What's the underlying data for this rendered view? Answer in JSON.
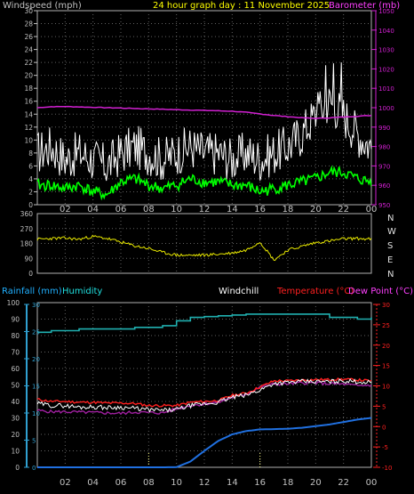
{
  "colors": {
    "wind_gust": "#ffffff",
    "wind_avg": "#00ff00",
    "barometer": "#d020d0",
    "header_yellow": "#ffff00",
    "bar_magenta": "#ff40ff",
    "direction": "#e8e800",
    "rain": "#2070e0",
    "rain_label": "#20b0ff",
    "humidity": "#20b0b0",
    "humidity_label": "#20e0e0",
    "windchill": "#ffffff",
    "temperature": "#ff2020",
    "dewpoint": "#a020a0",
    "temp_label": "#ff2020",
    "dew_label": "#ff40ff",
    "grid": "#606060",
    "frame": "#b0b0b0",
    "tick_text": "#c0c0c0",
    "rain_axis": "#30a0d0",
    "temp_axis": "#ff2020"
  },
  "header": {
    "left": "Windspeed (mph)",
    "center": "24 hour graph day : 11 November 2025",
    "right": "Barometer (mb)"
  },
  "bottom_header": {
    "rainfall": "Rainfall (mm)",
    "humidity": "Humidity",
    "windchill": "Windchill",
    "temperature": "Temperature (°C)",
    "dewpoint": "Dew Point (°C)"
  },
  "compass": [
    "N",
    "W",
    "S",
    "E",
    "N"
  ],
  "x_ticks": [
    "02",
    "04",
    "06",
    "08",
    "10",
    "12",
    "14",
    "16",
    "18",
    "20",
    "22",
    "00"
  ],
  "chart_data": [
    {
      "type": "line",
      "id": "wind",
      "xlim": [
        0,
        24
      ],
      "ylim": [
        0,
        30
      ],
      "y_ticks": [
        0,
        2,
        4,
        6,
        8,
        10,
        12,
        14,
        16,
        18,
        20,
        22,
        24,
        26,
        28,
        30
      ],
      "y2lim": [
        950,
        1050
      ],
      "y2_ticks": [
        950,
        960,
        970,
        980,
        990,
        1000,
        1010,
        1020,
        1030,
        1040,
        1050
      ],
      "x": [
        0,
        1,
        2,
        3,
        4,
        5,
        6,
        7,
        8,
        9,
        10,
        11,
        12,
        13,
        14,
        15,
        16,
        17,
        18,
        19,
        20,
        21,
        22,
        23,
        24
      ],
      "series": [
        {
          "name": "Windspeed (mph)",
          "role": "gust",
          "values": [
            8,
            9,
            7,
            8,
            7,
            6,
            8,
            9,
            8,
            7,
            8,
            9,
            8,
            8,
            7,
            8,
            7,
            8,
            9,
            11,
            14,
            16,
            14,
            11,
            9
          ]
        },
        {
          "name": "Windspeed (mph)",
          "role": "average",
          "values": [
            3,
            3,
            2.5,
            3,
            2,
            1.5,
            3.5,
            4,
            3,
            2.5,
            3,
            4,
            3.5,
            3.5,
            3,
            3,
            2,
            2.5,
            3,
            3.5,
            4,
            5,
            5,
            4,
            3.5
          ]
        },
        {
          "name": "Barometer (mb)",
          "axis": "right",
          "values": [
            1000,
            1000.5,
            1000.6,
            1000.4,
            1000.2,
            1000,
            999.8,
            999.6,
            999.4,
            999.2,
            999,
            998.8,
            998.6,
            998.4,
            998.2,
            997.6,
            996.8,
            996,
            995.4,
            994.8,
            994.5,
            994.8,
            995.2,
            995.6,
            996
          ]
        }
      ]
    },
    {
      "type": "line",
      "id": "direction",
      "xlim": [
        0,
        24
      ],
      "ylim": [
        0,
        360
      ],
      "y_ticks": [
        0,
        90,
        180,
        270,
        360
      ],
      "x": [
        0,
        1,
        2,
        3,
        4,
        5,
        6,
        7,
        8,
        9,
        10,
        11,
        12,
        13,
        14,
        15,
        16,
        17,
        18,
        19,
        20,
        21,
        22,
        23,
        24
      ],
      "series": [
        {
          "name": "Direction",
          "values": [
            205,
            210,
            212,
            205,
            222,
            210,
            188,
            165,
            150,
            125,
            110,
            108,
            110,
            115,
            122,
            140,
            190,
            80,
            140,
            162,
            185,
            195,
            208,
            210,
            205
          ]
        }
      ]
    },
    {
      "type": "line",
      "id": "temperature",
      "xlim": [
        0,
        24
      ],
      "ylim": [
        0,
        100
      ],
      "y_ticks": [
        0,
        10,
        20,
        30,
        40,
        50,
        60,
        70,
        80,
        90,
        100
      ],
      "y2lim": [
        -10,
        30
      ],
      "y2_ticks": [
        -10,
        -5,
        0,
        5,
        10,
        15,
        20,
        25,
        30
      ],
      "y3_ticks": [
        0,
        5,
        10,
        15,
        20,
        25,
        30
      ],
      "x": [
        0,
        1,
        2,
        3,
        4,
        5,
        6,
        7,
        8,
        9,
        10,
        11,
        12,
        13,
        14,
        15,
        16,
        17,
        18,
        19,
        20,
        21,
        22,
        23,
        24
      ],
      "series": [
        {
          "name": "Humidity",
          "values": [
            82,
            83,
            83,
            84,
            84,
            84,
            84,
            85,
            85,
            86,
            89,
            91,
            91.5,
            92,
            92.5,
            93,
            93,
            93,
            93,
            93,
            93,
            91,
            91,
            90,
            91
          ]
        },
        {
          "name": "Temperature (°C)",
          "axis": "right",
          "values": [
            6.5,
            6,
            6,
            5.8,
            5.8,
            5.6,
            5.6,
            5.5,
            5,
            5,
            5,
            5.8,
            6,
            6.2,
            7.5,
            8,
            9.5,
            11,
            11,
            11.2,
            11.3,
            11.3,
            11.4,
            11.2,
            11
          ]
        },
        {
          "name": "Windchill",
          "axis": "right",
          "values": [
            5.5,
            5,
            5,
            4.6,
            4.7,
            4.5,
            4.6,
            4.3,
            4,
            3.8,
            4,
            5,
            5.4,
            5.8,
            7,
            7.5,
            8.8,
            10.4,
            10.6,
            10.8,
            10.8,
            10.8,
            11,
            10.8,
            10.6
          ]
        },
        {
          "name": "Dew Point (°C)",
          "axis": "right",
          "values": [
            3.8,
            3.5,
            3.5,
            3.4,
            3.3,
            3.2,
            3.1,
            3.4,
            3.3,
            3.2,
            4.2,
            5,
            5.4,
            5.8,
            7,
            7.8,
            9.5,
            10.2,
            10.3,
            10.5,
            10.5,
            10.3,
            10.2,
            9.8,
            10
          ]
        },
        {
          "name": "Rainfall (mm)",
          "values": [
            0,
            0,
            0,
            0,
            0,
            0,
            0,
            0,
            0,
            0,
            0.1,
            3.5,
            10,
            16,
            20,
            22,
            23,
            23.2,
            23.4,
            24,
            25,
            26,
            27.5,
            29,
            30
          ]
        }
      ],
      "markers_x": [
        8,
        16
      ]
    }
  ]
}
